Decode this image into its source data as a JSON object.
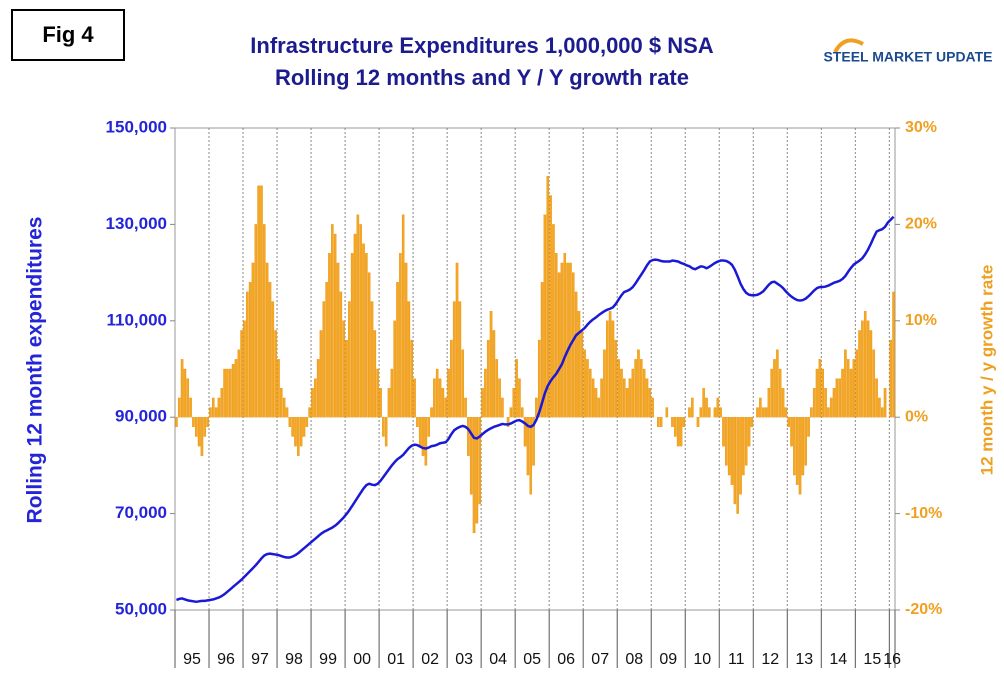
{
  "fig_label": "Fig 4",
  "logo": "STEEL MARKET UPDATE",
  "chart_data": {
    "type": "bar",
    "title": "Infrastructure Expenditures 1,000,000 $ NSA",
    "subtitle": "Rolling 12 months and Y / Y growth rate",
    "ylabel": "Rolling 12 month expenditures",
    "y2label": "12 month y / y growth rate",
    "categories": [
      null,
      null,
      null,
      null,
      null,
      null,
      "95",
      null,
      null,
      null,
      null,
      null,
      null,
      null,
      null,
      null,
      null,
      null,
      "96",
      null,
      null,
      null,
      null,
      null,
      null,
      null,
      null,
      null,
      null,
      null,
      "97",
      null,
      null,
      null,
      null,
      null,
      null,
      null,
      null,
      null,
      null,
      null,
      "98",
      null,
      null,
      null,
      null,
      null,
      null,
      null,
      null,
      null,
      null,
      null,
      "99",
      null,
      null,
      null,
      null,
      null,
      null,
      null,
      null,
      null,
      null,
      null,
      "00",
      null,
      null,
      null,
      null,
      null,
      null,
      null,
      null,
      null,
      null,
      null,
      "01",
      null,
      null,
      null,
      null,
      null,
      null,
      null,
      null,
      null,
      null,
      null,
      "02",
      null,
      null,
      null,
      null,
      null,
      null,
      null,
      null,
      null,
      null,
      null,
      "03",
      null,
      null,
      null,
      null,
      null,
      null,
      null,
      null,
      null,
      null,
      null,
      "04",
      null,
      null,
      null,
      null,
      null,
      null,
      null,
      null,
      null,
      null,
      null,
      "05",
      null,
      null,
      null,
      null,
      null,
      null,
      null,
      null,
      null,
      null,
      null,
      "06",
      null,
      null,
      null,
      null,
      null,
      null,
      null,
      null,
      null,
      null,
      null,
      "07",
      null,
      null,
      null,
      null,
      null,
      null,
      null,
      null,
      null,
      null,
      null,
      "08",
      null,
      null,
      null,
      null,
      null,
      null,
      null,
      null,
      null,
      null,
      null,
      "09",
      null,
      null,
      null,
      null,
      null,
      null,
      null,
      null,
      null,
      null,
      null,
      "10",
      null,
      null,
      null,
      null,
      null,
      null,
      null,
      null,
      null,
      null,
      null,
      "11",
      null,
      null,
      null,
      null,
      null,
      null,
      null,
      null,
      null,
      null,
      null,
      "12",
      null,
      null,
      null,
      null,
      null,
      null,
      null,
      null,
      null,
      null,
      null,
      "13",
      null,
      null,
      null,
      null,
      null,
      null,
      null,
      null,
      null,
      null,
      null,
      "14",
      null,
      null,
      null,
      null,
      null,
      null,
      null,
      null,
      null,
      null,
      null,
      "15",
      null,
      null,
      null,
      null,
      null,
      null,
      "16"
    ],
    "ylim": [
      50000,
      150000
    ],
    "yticks": [
      {
        "value": 50000,
        "label": "50,000"
      },
      {
        "value": 70000,
        "label": "70,000"
      },
      {
        "value": 90000,
        "label": "90,000"
      },
      {
        "value": 110000,
        "label": "110,000"
      },
      {
        "value": 130000,
        "label": "130,000"
      },
      {
        "value": 150000,
        "label": "150,000"
      }
    ],
    "y2lim": [
      -20,
      30
    ],
    "y2ticks": [
      {
        "value": -20,
        "label": "-20%"
      },
      {
        "value": -10,
        "label": "-10%"
      },
      {
        "value": 0,
        "label": "0%"
      },
      {
        "value": 10,
        "label": "10%"
      },
      {
        "value": 20,
        "label": "20%"
      },
      {
        "value": 30,
        "label": "30%"
      }
    ],
    "series": [
      {
        "type": "bar",
        "axis": "y2",
        "color": "#f5a623",
        "values": [
          -1,
          2,
          6,
          5,
          4,
          2,
          -1,
          -2,
          -3,
          -4,
          -2,
          -1,
          1,
          2,
          1,
          2,
          3,
          5,
          5,
          5,
          5.5,
          6,
          7,
          9,
          10,
          13,
          14,
          16,
          20,
          24,
          24,
          20,
          16,
          14,
          12,
          9,
          6,
          3,
          2,
          1,
          -1,
          -2,
          -3,
          -4,
          -3,
          -2,
          -1,
          1,
          3,
          4,
          6,
          9,
          12,
          14,
          17,
          20,
          19,
          16,
          13,
          10,
          8,
          12,
          17,
          19,
          21,
          20,
          18,
          17,
          15,
          12,
          9,
          5,
          3,
          -2,
          -3,
          3,
          5,
          10,
          14,
          17,
          21,
          16,
          12,
          8,
          4,
          -1,
          -3,
          -4,
          -5,
          -2,
          1,
          4,
          5,
          4,
          3,
          2,
          5,
          8,
          12,
          16,
          12,
          7,
          2,
          -4,
          -8,
          -12,
          -11,
          -9,
          3,
          5,
          8,
          11,
          9,
          6,
          4,
          2,
          0,
          -1,
          1,
          3,
          6,
          4,
          1,
          -3,
          -6,
          -8,
          -5,
          2,
          8,
          14,
          21,
          25,
          23,
          20,
          17,
          15,
          16,
          17,
          16,
          16,
          15,
          13,
          11,
          9,
          7,
          6,
          5,
          4,
          3,
          2,
          4,
          7,
          10,
          11,
          10,
          8,
          6,
          5,
          4,
          3,
          4,
          5,
          6,
          7,
          6,
          5,
          4,
          3,
          2,
          0,
          -1,
          -1,
          0,
          1,
          0,
          -1,
          -2,
          -3,
          -3,
          -1,
          0,
          1,
          2,
          0,
          -1,
          1,
          3,
          2,
          1,
          0,
          1,
          2,
          1,
          -3,
          -5,
          -6,
          -7,
          -9,
          -10,
          -8,
          -6,
          -5,
          -3,
          -1,
          0,
          1,
          2,
          1,
          1,
          3,
          5,
          6,
          7,
          5,
          3,
          1,
          -1,
          -3,
          -6,
          -7,
          -8,
          -6,
          -5,
          -2,
          1,
          3,
          5,
          6,
          5,
          3,
          1,
          2,
          3,
          4,
          4,
          5,
          7,
          6,
          5,
          6,
          7,
          9,
          10,
          11,
          10,
          9,
          7,
          4,
          2,
          1,
          3,
          0,
          8,
          13
        ]
      },
      {
        "type": "line",
        "color": "#1a1ad6",
        "values": [
          52100,
          52300,
          52400,
          52200,
          52000,
          51900,
          51800,
          51700,
          51800,
          51900,
          51900,
          52000,
          52100,
          52200,
          52400,
          52600,
          52900,
          53300,
          53800,
          54300,
          54800,
          55300,
          55800,
          56300,
          56900,
          57500,
          58100,
          58700,
          59300,
          60000,
          60700,
          61300,
          61600,
          61700,
          61600,
          61500,
          61400,
          61200,
          61000,
          60900,
          60900,
          61100,
          61400,
          61800,
          62300,
          62800,
          63300,
          63800,
          64300,
          64800,
          65300,
          65800,
          66200,
          66500,
          66800,
          67100,
          67500,
          68000,
          68600,
          69200,
          69900,
          70700,
          71600,
          72500,
          73400,
          74300,
          75200,
          75900,
          76200,
          76000,
          75900,
          76200,
          76800,
          77600,
          78400,
          79200,
          80000,
          80700,
          81300,
          81700,
          82200,
          82900,
          83600,
          84100,
          84300,
          84200,
          83900,
          83600,
          83500,
          83700,
          84000,
          84100,
          84300,
          84600,
          84700,
          84800,
          85500,
          86500,
          87300,
          87700,
          88000,
          88200,
          88000,
          87500,
          86600,
          85700,
          85600,
          86000,
          86500,
          87000,
          87400,
          87700,
          88000,
          88200,
          88400,
          88600,
          88500,
          88500,
          88700,
          89000,
          89300,
          89400,
          89100,
          88700,
          88200,
          88000,
          88400,
          89500,
          91000,
          93000,
          95000,
          96500,
          97500,
          98300,
          99000,
          100000,
          101000,
          102500,
          103800,
          105000,
          106000,
          107000,
          107500,
          108000,
          108500,
          109200,
          109800,
          110300,
          110700,
          111200,
          111600,
          112000,
          112300,
          112500,
          112800,
          113500,
          114400,
          115300,
          116000,
          116200,
          116500,
          117000,
          117800,
          118700,
          119600,
          120500,
          121500,
          122300,
          122600,
          122700,
          122600,
          122400,
          122300,
          122300,
          122300,
          122500,
          122400,
          122300,
          122000,
          121800,
          121500,
          121300,
          120900,
          120700,
          121000,
          121300,
          121200,
          120900,
          121200,
          121600,
          122000,
          122300,
          122500,
          122500,
          122400,
          122100,
          121600,
          120600,
          119200,
          117700,
          116600,
          115800,
          115400,
          115300,
          115300,
          115400,
          115700,
          116100,
          116800,
          117500,
          118000,
          118100,
          117700,
          117300,
          116800,
          116100,
          115500,
          115000,
          114600,
          114300,
          114200,
          114300,
          114600,
          115100,
          115700,
          116300,
          116800,
          117000,
          117000,
          117100,
          117300,
          117600,
          117900,
          118100,
          118300,
          118700,
          119300,
          120200,
          121000,
          121700,
          122100,
          122500,
          123000,
          123800,
          124800,
          126000,
          127300,
          128500,
          128800,
          129000,
          129500,
          130400,
          131000,
          131600
        ]
      }
    ]
  }
}
